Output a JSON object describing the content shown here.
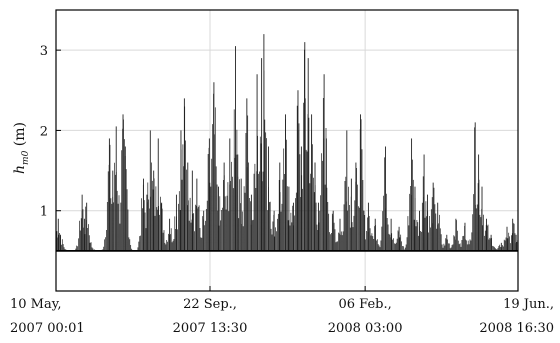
{
  "chart_data": {
    "type": "line",
    "ylabel_main": "h",
    "ylabel_sub": "m0",
    "ylabel_unit": " (m)",
    "ylim": [
      0,
      3.5
    ],
    "yticks": [
      1,
      2,
      3
    ],
    "xticks": [
      {
        "line1": "10 May,",
        "line2": "2007 00:01",
        "t": 0
      },
      {
        "line1": "22 Sep.,",
        "line2": "2007 13:30",
        "t": 135.56
      },
      {
        "line1": "06 Feb.,",
        "line2": "2008 03:00",
        "t": 272.12
      },
      {
        "line1": "19 Jun.,",
        "line2": "2008 16:30",
        "t": 406.68
      }
    ],
    "xlim": [
      0,
      406.68
    ],
    "grid": true,
    "threshold": 0.5,
    "series": [
      {
        "color": "#222222",
        "peaks": [
          {
            "t": 2,
            "v": 0.9
          },
          {
            "t": 4,
            "v": 0.7
          },
          {
            "t": 23,
            "v": 1.2
          },
          {
            "t": 25,
            "v": 0.9
          },
          {
            "t": 27,
            "v": 1.1
          },
          {
            "t": 30,
            "v": 0.6
          },
          {
            "t": 47,
            "v": 1.9
          },
          {
            "t": 50,
            "v": 1.5
          },
          {
            "t": 53,
            "v": 2.05
          },
          {
            "t": 59,
            "v": 2.2
          },
          {
            "t": 61,
            "v": 1.8
          },
          {
            "t": 77,
            "v": 1.4
          },
          {
            "t": 80,
            "v": 1.2
          },
          {
            "t": 83,
            "v": 2.0
          },
          {
            "t": 86,
            "v": 1.5
          },
          {
            "t": 90,
            "v": 1.9
          },
          {
            "t": 93,
            "v": 1.1
          },
          {
            "t": 100,
            "v": 0.9
          },
          {
            "t": 106,
            "v": 1.2
          },
          {
            "t": 110,
            "v": 2.0
          },
          {
            "t": 113,
            "v": 2.4
          },
          {
            "t": 116,
            "v": 1.6
          },
          {
            "t": 120,
            "v": 1.5
          },
          {
            "t": 124,
            "v": 1.4
          },
          {
            "t": 130,
            "v": 1.0
          },
          {
            "t": 135,
            "v": 1.9
          },
          {
            "t": 139,
            "v": 2.6
          },
          {
            "t": 143,
            "v": 1.3
          },
          {
            "t": 148,
            "v": 1.6
          },
          {
            "t": 153,
            "v": 1.9
          },
          {
            "t": 158,
            "v": 3.05
          },
          {
            "t": 160,
            "v": 1.7
          },
          {
            "t": 163,
            "v": 1.4
          },
          {
            "t": 168,
            "v": 2.4
          },
          {
            "t": 172,
            "v": 1.2
          },
          {
            "t": 177,
            "v": 2.7
          },
          {
            "t": 181,
            "v": 2.9
          },
          {
            "t": 183,
            "v": 3.2
          },
          {
            "t": 187,
            "v": 1.8
          },
          {
            "t": 192,
            "v": 1.0
          },
          {
            "t": 197,
            "v": 1.6
          },
          {
            "t": 202,
            "v": 2.2
          },
          {
            "t": 205,
            "v": 1.3
          },
          {
            "t": 209,
            "v": 1.1
          },
          {
            "t": 213,
            "v": 2.5
          },
          {
            "t": 216,
            "v": 1.8
          },
          {
            "t": 219,
            "v": 3.1
          },
          {
            "t": 222,
            "v": 2.9
          },
          {
            "t": 225,
            "v": 2.2
          },
          {
            "t": 228,
            "v": 1.6
          },
          {
            "t": 231,
            "v": 1.1
          },
          {
            "t": 236,
            "v": 2.7
          },
          {
            "t": 238,
            "v": 1.9
          },
          {
            "t": 244,
            "v": 1.0
          },
          {
            "t": 250,
            "v": 0.9
          },
          {
            "t": 256,
            "v": 2.0
          },
          {
            "t": 260,
            "v": 1.4
          },
          {
            "t": 264,
            "v": 1.6
          },
          {
            "t": 268,
            "v": 2.2
          },
          {
            "t": 271,
            "v": 1.0
          },
          {
            "t": 275,
            "v": 1.1
          },
          {
            "t": 281,
            "v": 0.9
          },
          {
            "t": 290,
            "v": 1.8
          },
          {
            "t": 295,
            "v": 0.9
          },
          {
            "t": 302,
            "v": 0.8
          },
          {
            "t": 313,
            "v": 1.9
          },
          {
            "t": 316,
            "v": 1.3
          },
          {
            "t": 320,
            "v": 1.0
          },
          {
            "t": 324,
            "v": 1.7
          },
          {
            "t": 327,
            "v": 1.2
          },
          {
            "t": 332,
            "v": 1.35
          },
          {
            "t": 336,
            "v": 1.1
          },
          {
            "t": 344,
            "v": 0.7
          },
          {
            "t": 352,
            "v": 0.9
          },
          {
            "t": 360,
            "v": 0.85
          },
          {
            "t": 369,
            "v": 2.1
          },
          {
            "t": 372,
            "v": 1.7
          },
          {
            "t": 375,
            "v": 1.3
          },
          {
            "t": 379,
            "v": 0.9
          },
          {
            "t": 383,
            "v": 0.7
          },
          {
            "t": 392,
            "v": 0.6
          },
          {
            "t": 397,
            "v": 0.8
          },
          {
            "t": 402,
            "v": 0.9
          },
          {
            "t": 405,
            "v": 0.7
          }
        ]
      }
    ]
  }
}
